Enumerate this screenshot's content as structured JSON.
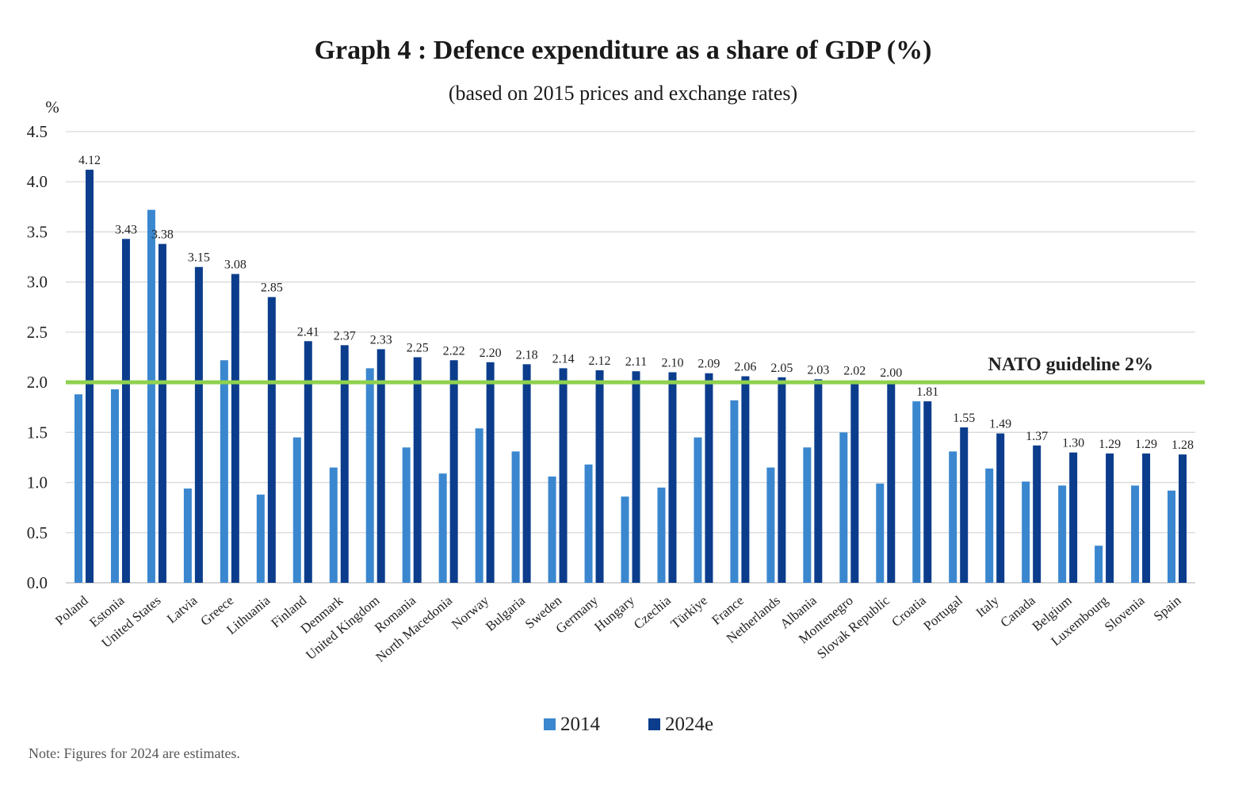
{
  "chart_data": {
    "type": "bar",
    "title": "Graph 4 : Defence expenditure as a share of GDP (%)",
    "subtitle": "(based on 2015 prices and exchange rates)",
    "ylabel": "%",
    "ylim": [
      0,
      4.5
    ],
    "yticks": [
      "0.0",
      "0.5",
      "1.0",
      "1.5",
      "2.0",
      "2.5",
      "3.0",
      "3.5",
      "4.0",
      "4.5"
    ],
    "grid": true,
    "legend_position": "bottom",
    "categories": [
      "Poland",
      "Estonia",
      "United States",
      "Latvia",
      "Greece",
      "Lithuania",
      "Finland",
      "Denmark",
      "United Kingdom",
      "Romania",
      "North Macedonia",
      "Norway",
      "Bulgaria",
      "Sweden",
      "Germany",
      "Hungary",
      "Czechia",
      "Türkiye",
      "France",
      "Netherlands",
      "Albania",
      "Montenegro",
      "Slovak Republic",
      "Croatia",
      "Portugal",
      "Italy",
      "Canada",
      "Belgium",
      "Luxembourg",
      "Slovenia",
      "Spain"
    ],
    "series": [
      {
        "name": "2014",
        "color": "#3a87cf",
        "values": [
          1.88,
          1.93,
          3.72,
          0.94,
          2.22,
          0.88,
          1.45,
          1.15,
          2.14,
          1.35,
          1.09,
          1.54,
          1.31,
          1.06,
          1.18,
          0.86,
          0.95,
          1.45,
          1.82,
          1.15,
          1.35,
          1.5,
          0.99,
          1.81,
          1.31,
          1.14,
          1.01,
          0.97,
          0.37,
          0.97,
          0.92
        ],
        "labels": []
      },
      {
        "name": "2024e",
        "color": "#0b3d8c",
        "values": [
          4.12,
          3.43,
          3.38,
          3.15,
          3.08,
          2.85,
          2.41,
          2.37,
          2.33,
          2.25,
          2.22,
          2.2,
          2.18,
          2.14,
          2.12,
          2.11,
          2.1,
          2.09,
          2.06,
          2.05,
          2.03,
          2.02,
          2.0,
          1.81,
          1.55,
          1.49,
          1.37,
          1.3,
          1.29,
          1.29,
          1.28
        ],
        "labels": [
          "4.12",
          "3.43",
          "3.38",
          "3.15",
          "3.08",
          "2.85",
          "2.41",
          "2.37",
          "2.33",
          "2.25",
          "2.22",
          "2.20",
          "2.18",
          "2.14",
          "2.12",
          "2.11",
          "2.10",
          "2.09",
          "2.06",
          "2.05",
          "2.03",
          "2.02",
          "2.00",
          "1.81",
          "1.55",
          "1.49",
          "1.37",
          "1.30",
          "1.29",
          "1.29",
          "1.28"
        ]
      }
    ],
    "reference_line": {
      "value": 2.0,
      "label": "NATO guideline 2%",
      "color": "#8fd14f"
    },
    "note": "Note: Figures for 2024 are estimates."
  }
}
